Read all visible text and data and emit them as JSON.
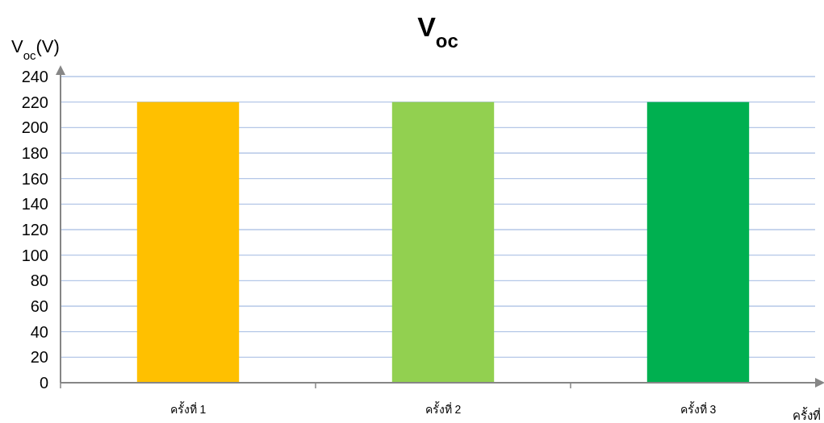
{
  "chart_data": {
    "type": "bar",
    "title": "V$_{oc}$",
    "ylabel": "V$_{oc}$(V)",
    "xlabel": "ครั้งที่",
    "categories": [
      "ครั้งที่ 1",
      "ครั้งที่ 2",
      "ครั้งที่ 3"
    ],
    "values": [
      220,
      220,
      220
    ],
    "colors": [
      "#ffc000",
      "#92d050",
      "#00b050"
    ],
    "ylim": [
      0,
      240
    ],
    "yticks": [
      0,
      20,
      40,
      60,
      80,
      100,
      120,
      140,
      160,
      180,
      200,
      220,
      240
    ],
    "grid": "y"
  }
}
